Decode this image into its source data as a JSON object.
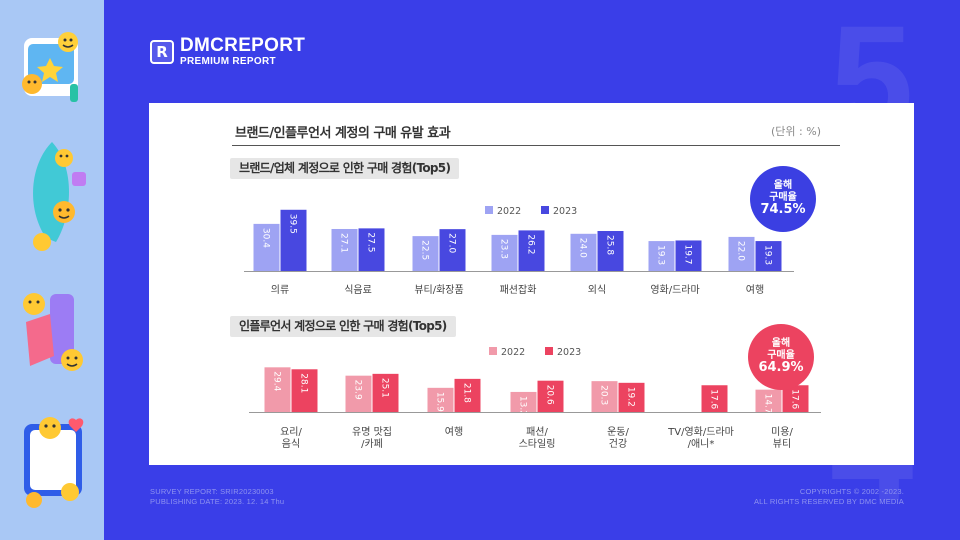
{
  "brand": {
    "logo_mark": "R",
    "name": "DMCREPORT",
    "subtitle": "PREMIUM REPORT"
  },
  "card": {
    "title": "브랜드/인플루언서 계정의 구매 유발 효과",
    "unit": "(단위 : %)"
  },
  "colors": {
    "background": "#3a3ee8",
    "sidebar": "#a9c8f5",
    "brand_2022": "#9ea3f3",
    "brand_2023": "#4848e0",
    "influencer_2022": "#f19aaa",
    "influencer_2023": "#ec4360",
    "badge_brand": "#3b3fe2",
    "badge_influencer": "#ec4360"
  },
  "chart_data": [
    {
      "type": "bar",
      "title": "브랜드/업체 계정으로 인한 구매 경험(Top5)",
      "categories": [
        "의류",
        "식음료",
        "뷰티/화장품",
        "패션잡화",
        "외식",
        "영화/드라마",
        "여행"
      ],
      "series": [
        {
          "name": "2022",
          "values": [
            30.4,
            27.1,
            22.5,
            23.3,
            24.0,
            19.3,
            22.0
          ]
        },
        {
          "name": "2023",
          "values": [
            39.5,
            27.5,
            27.0,
            26.2,
            25.8,
            19.7,
            19.3
          ]
        }
      ],
      "badge": {
        "line1": "올해",
        "line2": "구매율",
        "value": "74.5%"
      }
    },
    {
      "type": "bar",
      "title": "인플루언서 계정으로 인한 구매 경험(Top5)",
      "categories": [
        "요리/\n음식",
        "유명 맛집\n/카페",
        "여행",
        "패션/\n스타일링",
        "운동/\n건강",
        "TV/영화/드라마\n/애니*",
        "미용/\n뷰티"
      ],
      "series": [
        {
          "name": "2022",
          "values": [
            29.4,
            23.9,
            15.9,
            13.2,
            20.3,
            null,
            14.7
          ]
        },
        {
          "name": "2023",
          "values": [
            28.1,
            25.1,
            21.8,
            20.6,
            19.2,
            17.6,
            17.6
          ]
        }
      ],
      "badge": {
        "line1": "올해",
        "line2": "구매율",
        "value": "64.9%"
      }
    }
  ],
  "footer": {
    "left_line1": "SURVEY REPORT: SRIR20230003",
    "left_line2": "PUBLISHING DATE: 2023. 12. 14 Thu",
    "right_line1": "COPYRIGHTS  ©  2002 -2023.",
    "right_line2": "ALL RIGHTS RESERVED BY DMC MEDIA"
  }
}
